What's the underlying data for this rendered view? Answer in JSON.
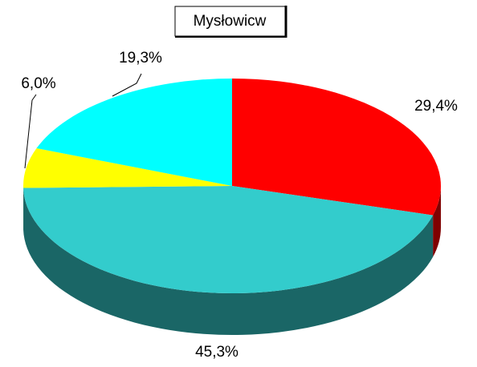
{
  "chart_data": {
    "type": "pie",
    "title": "Mysłowicw",
    "categories": [
      null,
      null,
      null,
      null
    ],
    "values": [
      29.4,
      45.3,
      6.0,
      19.3
    ],
    "value_labels": [
      "29,4%",
      "45,3%",
      "6,0%",
      "19,3%"
    ],
    "colors": [
      "#ff0000",
      "#33cccc",
      "#ffff00",
      "#00ffff"
    ]
  }
}
